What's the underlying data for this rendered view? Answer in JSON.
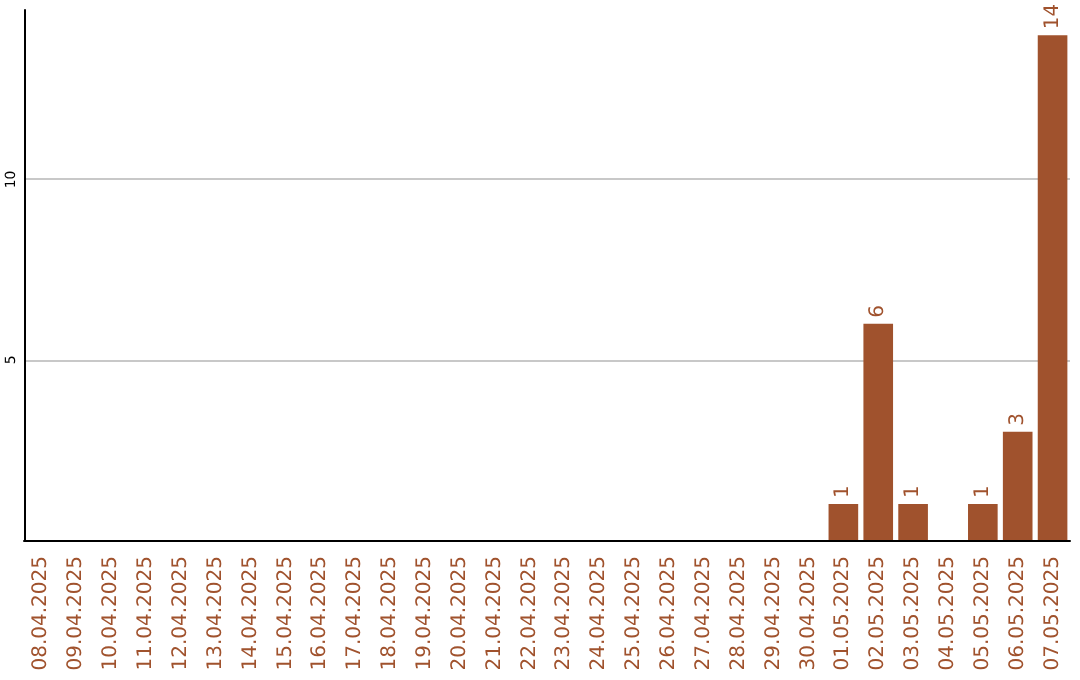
{
  "chart_data": {
    "type": "bar",
    "categories": [
      "08.04.2025",
      "09.04.2025",
      "10.04.2025",
      "11.04.2025",
      "12.04.2025",
      "13.04.2025",
      "14.04.2025",
      "15.04.2025",
      "16.04.2025",
      "17.04.2025",
      "18.04.2025",
      "19.04.2025",
      "20.04.2025",
      "21.04.2025",
      "22.04.2025",
      "23.04.2025",
      "24.04.2025",
      "25.04.2025",
      "26.04.2025",
      "27.04.2025",
      "28.04.2025",
      "29.04.2025",
      "30.04.2025",
      "01.05.2025",
      "02.05.2025",
      "03.05.2025",
      "04.05.2025",
      "05.05.2025",
      "06.05.2025",
      "07.05.2025"
    ],
    "values": [
      0,
      0,
      0,
      0,
      0,
      0,
      0,
      0,
      0,
      0,
      0,
      0,
      0,
      0,
      0,
      0,
      0,
      0,
      0,
      0,
      0,
      0,
      0,
      1,
      6,
      1,
      0,
      1,
      3,
      14
    ],
    "value_labels": [
      null,
      null,
      null,
      null,
      null,
      null,
      null,
      null,
      null,
      null,
      null,
      null,
      null,
      null,
      null,
      null,
      null,
      null,
      null,
      null,
      null,
      null,
      null,
      "1",
      "6",
      "1",
      null,
      "1",
      "3",
      "14"
    ],
    "color": "#a0522d",
    "ylim": [
      0,
      14.7
    ],
    "yticks": [
      5,
      10
    ],
    "grid": "y"
  }
}
